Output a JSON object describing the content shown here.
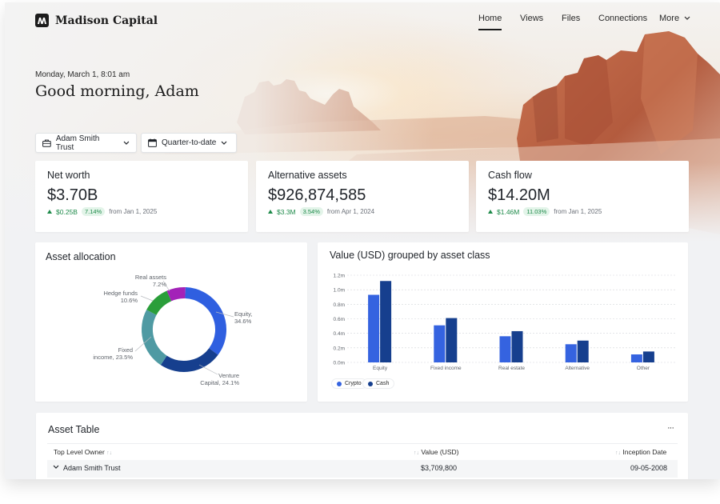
{
  "brand": {
    "name": "Madison Capital",
    "icon": "madison-logo-icon"
  },
  "nav": {
    "items": [
      {
        "label": "Home",
        "active": true
      },
      {
        "label": "Views",
        "active": false
      },
      {
        "label": "Files",
        "active": false
      },
      {
        "label": "Connections",
        "active": false
      },
      {
        "label": "More",
        "active": false
      }
    ]
  },
  "greeting": {
    "date": "Monday, March 1, 8:01 am",
    "text": "Good morning, Adam"
  },
  "filters": {
    "entity": {
      "label": "Adam Smith Trust",
      "icon": "briefcase-icon"
    },
    "period": {
      "label": "Quarter-to-date",
      "icon": "calendar-icon"
    }
  },
  "kpis": [
    {
      "title": "Net worth",
      "value": "$3.70B",
      "delta": "$0.25B",
      "pct": "7.14%",
      "since": "from Jan 1, 2025"
    },
    {
      "title": "Alternative assets",
      "value": "$926,874,585",
      "delta": "$3.3M",
      "pct": "3.54%",
      "since": "from Apr 1, 2024"
    },
    {
      "title": "Cash flow",
      "value": "$14.20M",
      "delta": "$1.46M",
      "pct": "11.03%",
      "since": "from Jan 1, 2025"
    }
  ],
  "allocation": {
    "title": "Asset allocation",
    "segments": [
      {
        "name": "Equity",
        "pct_label": "34.6%",
        "value": 34.6,
        "color": "#2f5fe0"
      },
      {
        "name": "Venture Capital",
        "pct_label": "24.1%",
        "value": 24.1,
        "color": "#163f8e"
      },
      {
        "name": "Fixed income",
        "pct_label": "23.5%",
        "value": 23.5,
        "color": "#4f9aa3"
      },
      {
        "name": "Hedge funds",
        "pct_label": "10.6%",
        "value": 10.6,
        "color": "#2a9e3a"
      },
      {
        "name": "Real assets",
        "pct_label": "7.2%",
        "value": 7.2,
        "color": "#a322b8"
      }
    ],
    "labels": {
      "equity_1": "Equity,",
      "equity_2": "34.6%",
      "venture_1": "Venture",
      "venture_2": "Capital, 24.1%",
      "fixed_1": "Fixed",
      "fixed_2": "income, 23.5%",
      "hedge_1": "Hedge funds",
      "hedge_2": "10.6%",
      "real_1": "Real assets",
      "real_2": "7.2%"
    }
  },
  "chart_data": {
    "type": "bar",
    "title": "Value (USD) grouped by asset class",
    "categories": [
      "Equity",
      "Fixed income",
      "Real estate",
      "Alternative",
      "Other"
    ],
    "series": [
      {
        "name": "Crypto",
        "color": "#3563e0",
        "values": [
          0.93,
          0.51,
          0.36,
          0.25,
          0.11
        ]
      },
      {
        "name": "Cash",
        "color": "#163f8e",
        "values": [
          1.12,
          0.61,
          0.43,
          0.3,
          0.15
        ]
      }
    ],
    "yticks": [
      "0.0m",
      "0.2m",
      "0.4m",
      "0.6m",
      "0.8m",
      "1.0m",
      "1.2m"
    ],
    "ylim": [
      0,
      1.2
    ],
    "grid": true,
    "legend": "bottom-left"
  },
  "table": {
    "title": "Asset Table",
    "menu_icon": "more-horizontal-icon",
    "more_label": "···",
    "columns": [
      "Top Level Owner",
      "Value (USD)",
      "Inception Date"
    ],
    "rows": [
      {
        "owner": "Adam Smith Trust",
        "value": "$3,709,800",
        "date": "09-05-2008"
      }
    ]
  }
}
